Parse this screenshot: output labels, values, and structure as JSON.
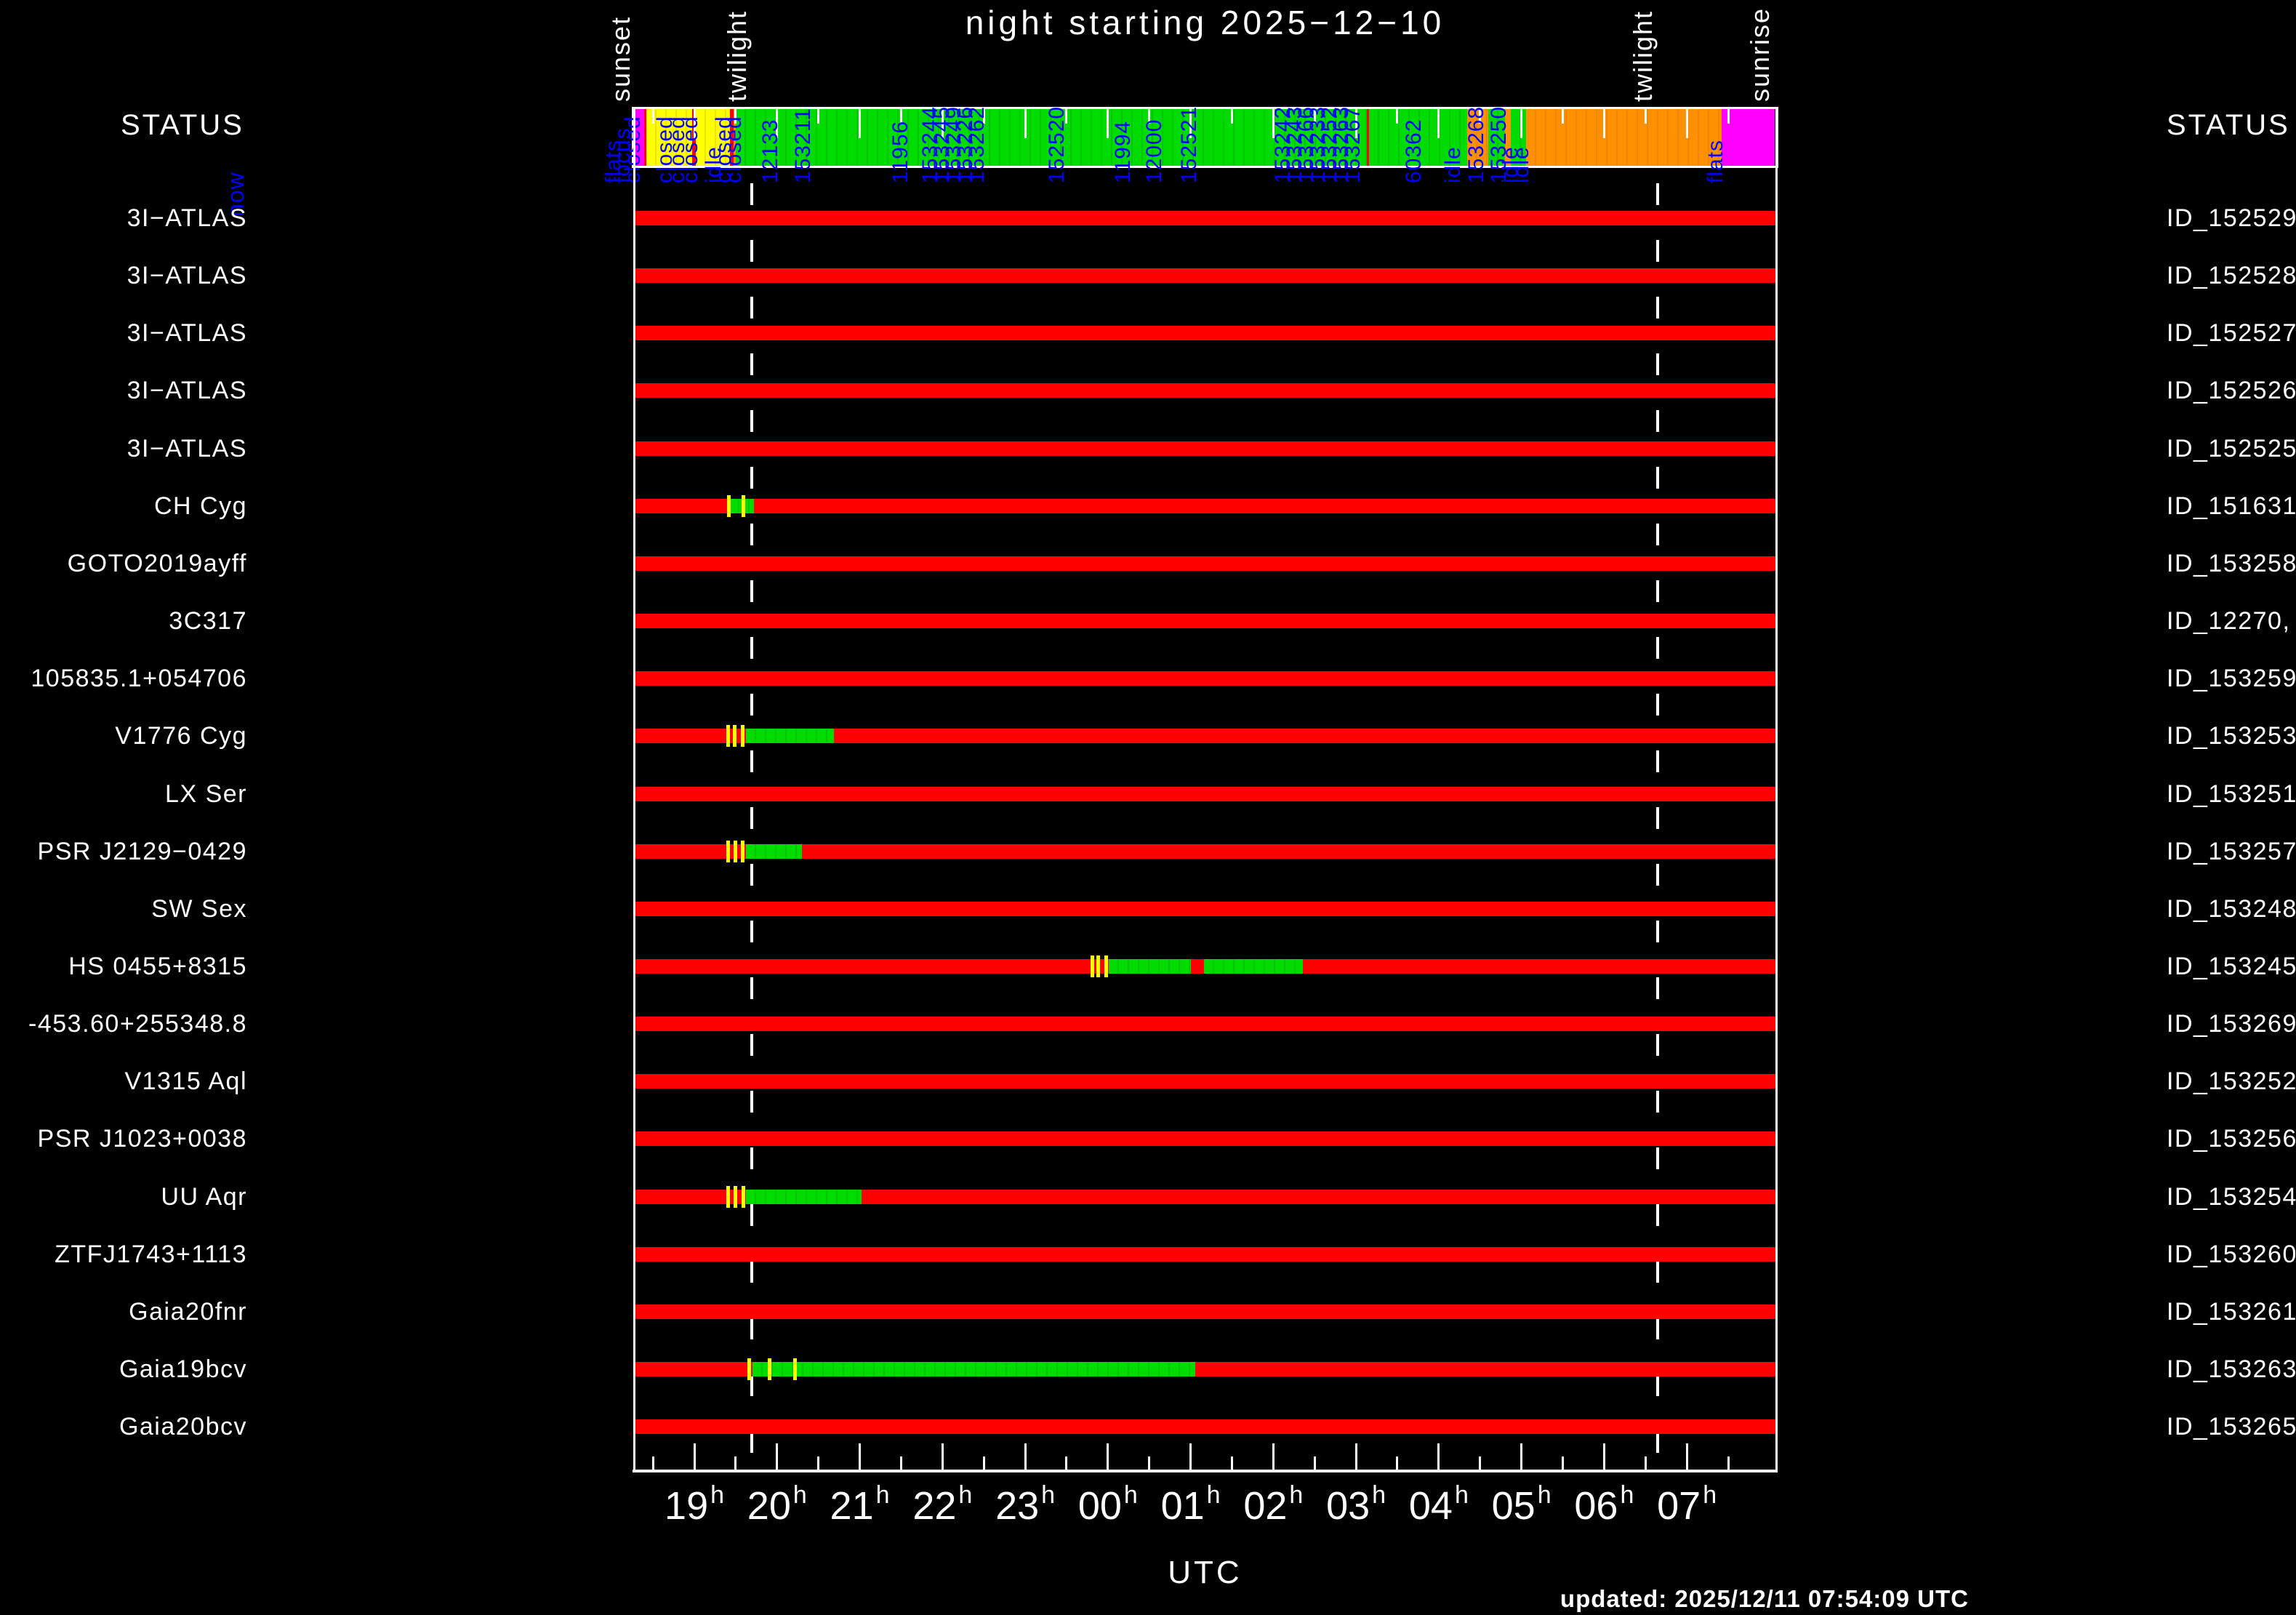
{
  "colors": {
    "red": "#ff0000",
    "green": "#00dc00",
    "green_stripe": "#00c600",
    "yellow": "#ffff00",
    "yellow_stripe": "#efe400",
    "orange": "#ff9100",
    "orange_stripe": "#ef8500",
    "magenta": "#ff00ff",
    "blue": "#0000ff",
    "white": "#ffffff",
    "background": "#000000"
  },
  "header": {
    "status_left": "STATUS",
    "status_right": "STATUS"
  },
  "footer": {
    "axis_title": "UTC",
    "updated": "updated: 2025/12/11 07:54:09 UTC"
  },
  "chart_data": {
    "type": "bar",
    "title": "night starting 2025−12−10",
    "xlabel": "UTC",
    "now_marker": {
      "text": "now"
    },
    "x_axis": {
      "start_hour": 18.27,
      "end_hour": 32.08,
      "hour_suffix": "h",
      "hour_ticks": [
        19,
        20,
        21,
        22,
        23,
        24,
        25,
        26,
        27,
        28,
        29,
        30,
        31
      ],
      "hour_labels": [
        "19",
        "20",
        "21",
        "22",
        "23",
        "00",
        "01",
        "02",
        "03",
        "04",
        "05",
        "06",
        "07"
      ],
      "half_hour_ticks": [
        18.5,
        19.5,
        20.5,
        21.5,
        22.5,
        23.5,
        24.5,
        25.5,
        26.5,
        27.5,
        28.5,
        29.5,
        30.5,
        31.5
      ]
    },
    "vertical_markers": [
      {
        "text": "sunset",
        "hour": 18.29,
        "dashed_line": false
      },
      {
        "text": "twilight",
        "hour": 19.69,
        "dashed_line": true
      },
      {
        "text": "twilight",
        "hour": 30.65,
        "dashed_line": true
      },
      {
        "text": "sunrise",
        "hour": 32.06,
        "dashed_line": false
      }
    ],
    "summary_bar": {
      "segments": [
        [
          18.29,
          18.39,
          "magenta"
        ],
        [
          18.39,
          18.42,
          "red"
        ],
        [
          18.42,
          18.97,
          "yellow"
        ],
        [
          18.97,
          19.02,
          "red"
        ],
        [
          19.02,
          19.43,
          "yellow"
        ],
        [
          19.43,
          19.47,
          "red"
        ],
        [
          19.47,
          19.5,
          "orange"
        ],
        [
          19.5,
          27.13,
          "green"
        ],
        [
          27.13,
          27.16,
          "red"
        ],
        [
          27.16,
          28.34,
          "green"
        ],
        [
          28.34,
          28.6,
          "orange"
        ],
        [
          28.6,
          28.8,
          "green"
        ],
        [
          28.8,
          28.87,
          "orange"
        ],
        [
          28.87,
          29.06,
          "green"
        ],
        [
          29.06,
          31.42,
          "orange"
        ],
        [
          31.42,
          32.06,
          "magenta"
        ]
      ],
      "labels": [
        [
          18.02,
          "flats"
        ],
        [
          18.14,
          "focus"
        ],
        [
          18.26,
          "closed"
        ],
        [
          18.65,
          "closed"
        ],
        [
          18.8,
          "closed"
        ],
        [
          18.96,
          "closed"
        ],
        [
          19.24,
          "idle"
        ],
        [
          19.36,
          "closed"
        ],
        [
          19.48,
          "closed"
        ],
        [
          19.92,
          "12133"
        ],
        [
          20.32,
          "153211"
        ],
        [
          21.5,
          "11956"
        ],
        [
          21.86,
          "153244"
        ],
        [
          22.0,
          "153245"
        ],
        [
          22.14,
          "153249"
        ],
        [
          22.28,
          "153226"
        ],
        [
          22.42,
          "153262"
        ],
        [
          23.39,
          "152520"
        ],
        [
          24.19,
          "11994"
        ],
        [
          24.56,
          "12000"
        ],
        [
          24.99,
          "152521"
        ],
        [
          26.12,
          "153242"
        ],
        [
          26.26,
          "153243"
        ],
        [
          26.4,
          "153266"
        ],
        [
          26.54,
          "153233"
        ],
        [
          26.68,
          "153252"
        ],
        [
          26.82,
          "153263"
        ],
        [
          26.96,
          "153267"
        ],
        [
          27.7,
          "60362"
        ],
        [
          28.18,
          "idle"
        ],
        [
          28.46,
          "153268"
        ],
        [
          28.73,
          "153250"
        ],
        [
          28.87,
          "idle"
        ],
        [
          29.0,
          "idle"
        ],
        [
          31.35,
          "flats"
        ]
      ]
    },
    "rows": [
      {
        "name": "3I−ATLAS",
        "id": "ID_152529"
      },
      {
        "name": "3I−ATLAS",
        "id": "ID_152528"
      },
      {
        "name": "3I−ATLAS",
        "id": "ID_152527"
      },
      {
        "name": "3I−ATLAS",
        "id": "ID_152526"
      },
      {
        "name": "3I−ATLAS",
        "id": "ID_152525"
      },
      {
        "name": "CH Cyg",
        "id": "ID_151631",
        "green": [
          [
            19.42,
            19.72
          ]
        ],
        "ticks": [
          19.42,
          19.59
        ]
      },
      {
        "name": "GOTO2019ayff",
        "id": "ID_153258"
      },
      {
        "name": "3C317",
        "id": "ID_12270,"
      },
      {
        "name": "105835.1+054706",
        "id": "ID_153259"
      },
      {
        "name": "V1776 Cyg",
        "id": "ID_153253",
        "green": [
          [
            19.62,
            20.69
          ]
        ],
        "ticks": [
          19.41,
          19.49,
          19.58
        ]
      },
      {
        "name": "LX Ser",
        "id": "ID_153251"
      },
      {
        "name": "PSR J2129−0429",
        "id": "ID_153257",
        "green": [
          [
            19.62,
            20.3
          ]
        ],
        "ticks": [
          19.41,
          19.5,
          19.58
        ]
      },
      {
        "name": "SW Sex",
        "id": "ID_153248"
      },
      {
        "name": "HS 0455+8315",
        "id": "ID_153245",
        "green": [
          [
            24.01,
            25.0
          ],
          [
            25.16,
            26.36
          ]
        ],
        "ticks": [
          23.81,
          23.88,
          23.98
        ]
      },
      {
        "name": "-453.60+255348.8",
        "id": "ID_153269"
      },
      {
        "name": "V1315 Aql",
        "id": "ID_153252"
      },
      {
        "name": "PSR J1023+0038",
        "id": "ID_153256"
      },
      {
        "name": "UU Aqr",
        "id": "ID_153254",
        "green": [
          [
            19.62,
            21.02
          ]
        ],
        "ticks": [
          19.41,
          19.5,
          19.59
        ]
      },
      {
        "name": "ZTFJ1743+1113",
        "id": "ID_153260"
      },
      {
        "name": "Gaia20fnr",
        "id": "ID_153261"
      },
      {
        "name": "Gaia19bcv",
        "id": "ID_153263",
        "green": [
          [
            19.7,
            25.06
          ]
        ],
        "ticks": [
          19.66,
          19.91,
          20.22
        ]
      },
      {
        "name": "Gaia20bcv",
        "id": "ID_153265"
      }
    ]
  }
}
